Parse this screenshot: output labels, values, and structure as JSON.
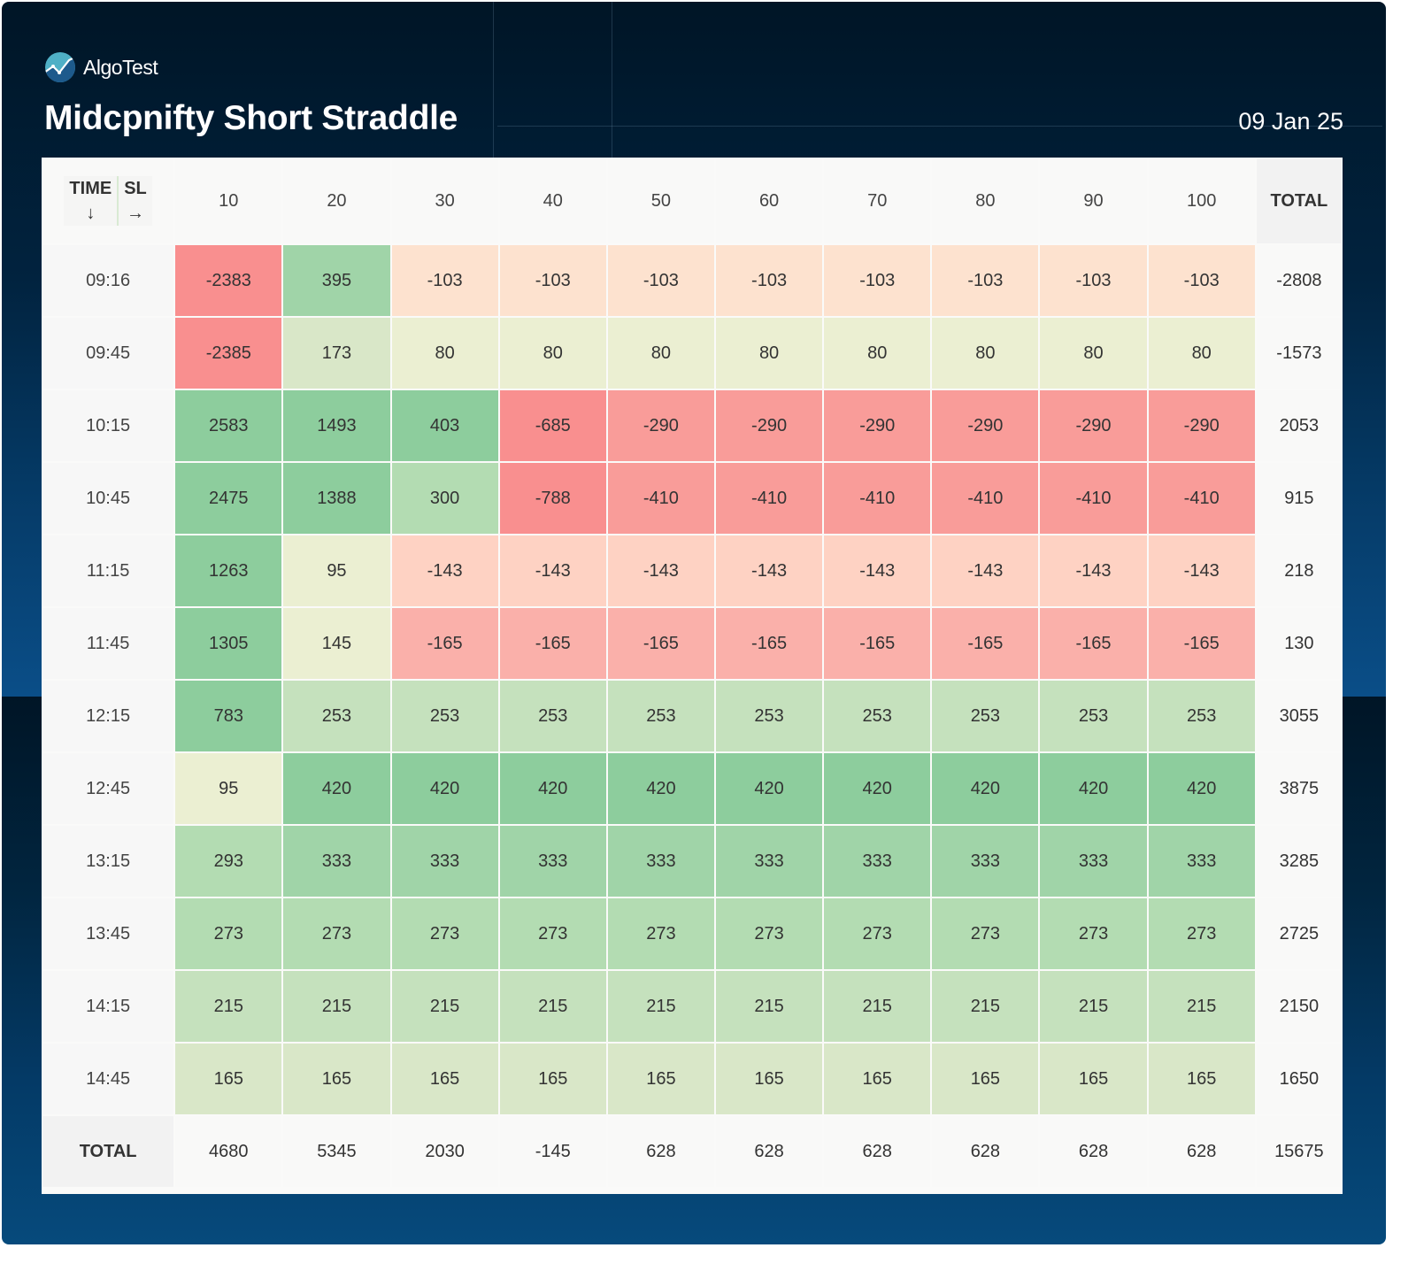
{
  "brand": {
    "name": "AlgoTest",
    "logo_icon": "algotest-logo-icon"
  },
  "header": {
    "title": "Midcpnifty Short Straddle",
    "date": "09 Jan 25"
  },
  "colors": {
    "negative_strong": "#f98f8f",
    "negative_mid": "#f99c99",
    "negative_light": "#fab0aa",
    "negative_pale": "#fed2c3",
    "negative_faint": "#fde2cf",
    "neutral_pale": "#ebefd2",
    "positive_faint": "#d9e7c8",
    "positive_light": "#c5e1bd",
    "positive_mid": "#b3dcb2",
    "positive_strong": "#a0d4a8",
    "positive_max": "#8dcd9d"
  },
  "chart_data": {
    "type": "heatmap",
    "title": "Midcpnifty Short Straddle",
    "subtitle": "09 Jan 25",
    "corner": {
      "row_axis_label": "TIME",
      "row_axis_arrow": "↓",
      "col_axis_label": "SL",
      "col_axis_arrow": "→"
    },
    "total_label": "TOTAL",
    "columns": [
      "10",
      "20",
      "30",
      "40",
      "50",
      "60",
      "70",
      "80",
      "90",
      "100"
    ],
    "rows": [
      {
        "time": "09:16",
        "values": [
          -2383,
          395,
          -103,
          -103,
          -103,
          -103,
          -103,
          -103,
          -103,
          -103
        ],
        "total": -2808
      },
      {
        "time": "09:45",
        "values": [
          -2385,
          173,
          80,
          80,
          80,
          80,
          80,
          80,
          80,
          80
        ],
        "total": -1573
      },
      {
        "time": "10:15",
        "values": [
          2583,
          1493,
          403,
          -685,
          -290,
          -290,
          -290,
          -290,
          -290,
          -290
        ],
        "total": 2053
      },
      {
        "time": "10:45",
        "values": [
          2475,
          1388,
          300,
          -788,
          -410,
          -410,
          -410,
          -410,
          -410,
          -410
        ],
        "total": 915
      },
      {
        "time": "11:15",
        "values": [
          1263,
          95,
          -143,
          -143,
          -143,
          -143,
          -143,
          -143,
          -143,
          -143
        ],
        "total": 218
      },
      {
        "time": "11:45",
        "values": [
          1305,
          145,
          -165,
          -165,
          -165,
          -165,
          -165,
          -165,
          -165,
          -165
        ],
        "total": 130
      },
      {
        "time": "12:15",
        "values": [
          783,
          253,
          253,
          253,
          253,
          253,
          253,
          253,
          253,
          253
        ],
        "total": 3055
      },
      {
        "time": "12:45",
        "values": [
          95,
          420,
          420,
          420,
          420,
          420,
          420,
          420,
          420,
          420
        ],
        "total": 3875
      },
      {
        "time": "13:15",
        "values": [
          293,
          333,
          333,
          333,
          333,
          333,
          333,
          333,
          333,
          333
        ],
        "total": 3285
      },
      {
        "time": "13:45",
        "values": [
          273,
          273,
          273,
          273,
          273,
          273,
          273,
          273,
          273,
          273
        ],
        "total": 2725
      },
      {
        "time": "14:15",
        "values": [
          215,
          215,
          215,
          215,
          215,
          215,
          215,
          215,
          215,
          215
        ],
        "total": 2150
      },
      {
        "time": "14:45",
        "values": [
          165,
          165,
          165,
          165,
          165,
          165,
          165,
          165,
          165,
          165
        ],
        "total": 1650
      }
    ],
    "column_totals": [
      4680,
      5345,
      2030,
      -145,
      628,
      628,
      628,
      628,
      628,
      628
    ],
    "grand_total": 15675
  }
}
